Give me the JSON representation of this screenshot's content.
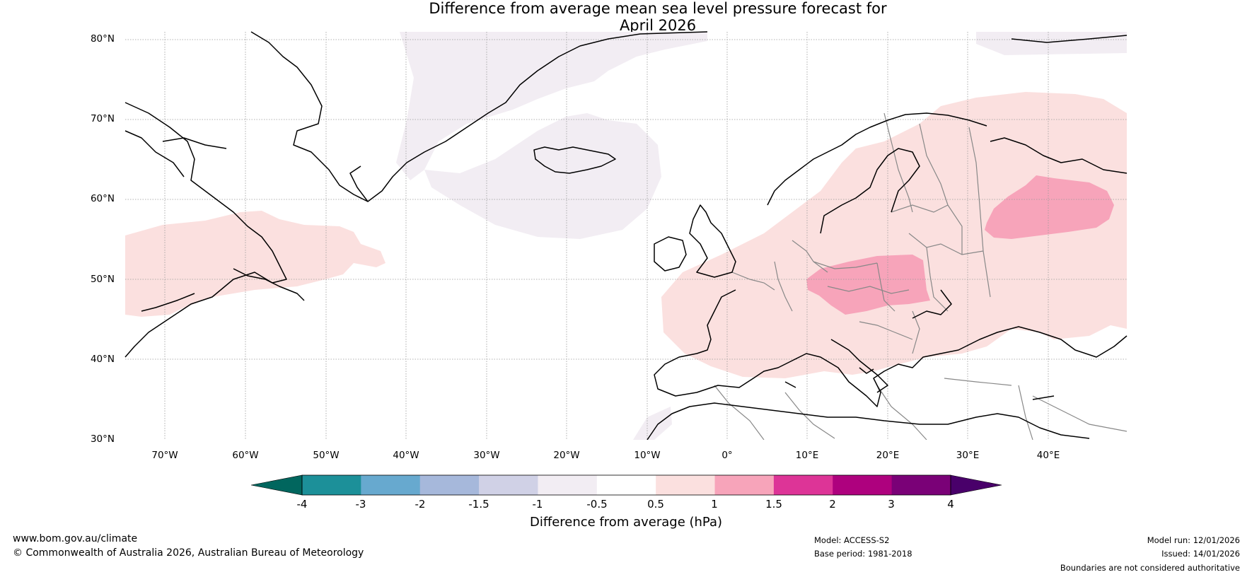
{
  "title": {
    "line1": "Difference from average mean sea level pressure forecast for",
    "line2": "April 2026"
  },
  "map": {
    "lat_labels": [
      "80°N",
      "70°N",
      "60°N",
      "50°N",
      "40°N",
      "30°N"
    ],
    "lon_labels": [
      "70°W",
      "60°W",
      "50°W",
      "40°W",
      "30°W",
      "20°W",
      "10°W",
      "0°",
      "10°E",
      "20°E",
      "30°E",
      "40°E"
    ],
    "colors": {
      "neg_0_5_to_1": "#f2edf3",
      "pos_0_5_to_1": "#fbe0df",
      "pos_1_to_1_5": "#f7a4ba",
      "coast": "#000000",
      "border": "#888888",
      "grid": "#999999"
    }
  },
  "colorbar": {
    "title": "Difference from average (hPa)",
    "ticks": [
      "-4",
      "-3",
      "-2",
      "-1.5",
      "-1",
      "-0.5",
      "0.5",
      "1",
      "1.5",
      "2",
      "3",
      "4"
    ],
    "segments": [
      "#1c9099",
      "#67a9cf",
      "#a6b8db",
      "#d0d1e6",
      "#f2edf3",
      "#ffffff",
      "#fbe0df",
      "#f7a4ba",
      "#dd3497",
      "#ae017e",
      "#7a0177"
    ],
    "extend_low": "#01665e",
    "extend_high": "#49006a"
  },
  "footer": {
    "website": "www.bom.gov.au/climate",
    "copyright": "© Commonwealth of Australia 2026, Australian Bureau of Meteorology",
    "model": "Model: ACCESS-S2",
    "base_period": "Base period: 1981-2018",
    "model_run": "Model run: 12/01/2026",
    "issued": "Issued: 14/01/2026",
    "disclaimer": "Boundaries are not considered authoritative"
  }
}
